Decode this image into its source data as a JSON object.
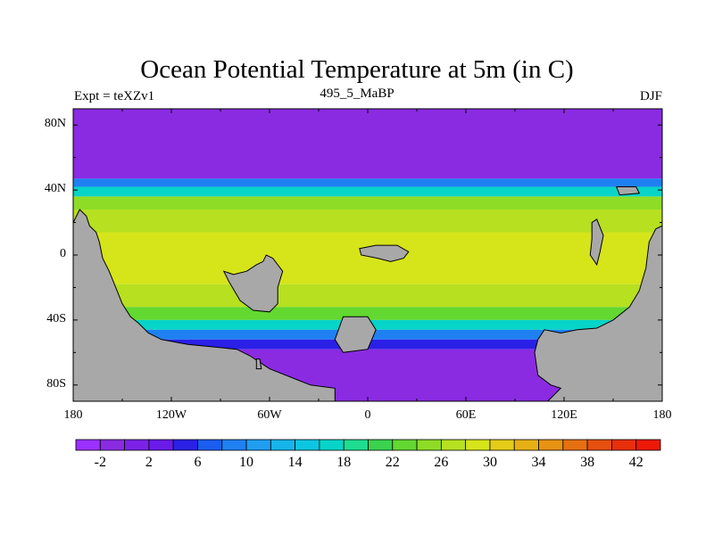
{
  "chart_data": {
    "type": "heatmap",
    "title": "Ocean Potential Temperature at 5m (in C)",
    "subtitle_left": "Expt = teXZv1",
    "subtitle_center": "495_5_MaBP",
    "subtitle_right": "DJF",
    "x_ticks": [
      "180",
      "120W",
      "60W",
      "0",
      "60E",
      "120E",
      "180"
    ],
    "x_tick_values": [
      -180,
      -120,
      -60,
      0,
      60,
      120,
      180
    ],
    "y_ticks": [
      "80N",
      "40N",
      "0",
      "40S",
      "80S"
    ],
    "y_tick_values": [
      80,
      40,
      0,
      -40,
      -80
    ],
    "xlim": [
      -180,
      180
    ],
    "ylim": [
      -90,
      90
    ],
    "colorbar_labels": [
      "-2",
      "2",
      "6",
      "10",
      "14",
      "18",
      "22",
      "26",
      "30",
      "34",
      "38",
      "42"
    ],
    "colorbar_colors": [
      "#9b30ff",
      "#8a2be2",
      "#7b21e6",
      "#6a1be8",
      "#2a20e6",
      "#1a5ef0",
      "#1f80f2",
      "#1f9ef0",
      "#16b4ea",
      "#0bc6e2",
      "#06d4c8",
      "#1edc90",
      "#3ad24e",
      "#62d830",
      "#8edc26",
      "#b6e020",
      "#d6e41a",
      "#e4cc18",
      "#e6b014",
      "#e69212",
      "#e67010",
      "#e6500e",
      "#e8300c",
      "#ec1808"
    ],
    "land_color": "#a8a8a8",
    "bands": [
      {
        "lat_top": 90,
        "lat_bottom": 47,
        "temp": -2
      },
      {
        "lat_top": 47,
        "lat_bottom": 42,
        "temp": 8
      },
      {
        "lat_top": 42,
        "lat_bottom": 36,
        "temp": 17
      },
      {
        "lat_top": 36,
        "lat_bottom": 28,
        "temp": 24
      },
      {
        "lat_top": 28,
        "lat_bottom": 14,
        "temp": 27
      },
      {
        "lat_top": 14,
        "lat_bottom": -18,
        "temp": 29
      },
      {
        "lat_top": -18,
        "lat_bottom": -32,
        "temp": 27
      },
      {
        "lat_top": -32,
        "lat_bottom": -40,
        "temp": 22
      },
      {
        "lat_top": -40,
        "lat_bottom": -46,
        "temp": 16
      },
      {
        "lat_top": -46,
        "lat_bottom": -52,
        "temp": 9
      },
      {
        "lat_top": -52,
        "lat_bottom": -58,
        "temp": 4
      },
      {
        "lat_top": -58,
        "lat_bottom": -90,
        "temp": -2
      }
    ],
    "land_masses": [
      {
        "name": "eastern-america",
        "points": [
          [
            -180,
            -90
          ],
          [
            -180,
            20
          ],
          [
            -176,
            28
          ],
          [
            -172,
            24
          ],
          [
            -170,
            18
          ],
          [
            -166,
            14
          ],
          [
            -164,
            8
          ],
          [
            -162,
            -2
          ],
          [
            -158,
            -10
          ],
          [
            -154,
            -20
          ],
          [
            -150,
            -30
          ],
          [
            -145,
            -38
          ],
          [
            -140,
            -42
          ],
          [
            -134,
            -48
          ],
          [
            -126,
            -52
          ],
          [
            -110,
            -55
          ],
          [
            -80,
            -58
          ],
          [
            -72,
            -62
          ],
          [
            -60,
            -70
          ],
          [
            -45,
            -76
          ],
          [
            -35,
            -80
          ],
          [
            -20,
            -82
          ],
          [
            -20,
            -90
          ]
        ]
      },
      {
        "name": "africa-like-island",
        "points": [
          [
            -88,
            -10
          ],
          [
            -85,
            -16
          ],
          [
            -78,
            -28
          ],
          [
            -70,
            -34
          ],
          [
            -60,
            -35
          ],
          [
            -55,
            -30
          ],
          [
            -55,
            -20
          ],
          [
            -52,
            -10
          ],
          [
            -58,
            -2
          ],
          [
            -62,
            0
          ],
          [
            -64,
            -4
          ],
          [
            -68,
            -6
          ],
          [
            -74,
            -10
          ],
          [
            -82,
            -12
          ]
        ]
      },
      {
        "name": "equatorial-island",
        "points": [
          [
            -5,
            4
          ],
          [
            5,
            6
          ],
          [
            18,
            6
          ],
          [
            25,
            2
          ],
          [
            22,
            -2
          ],
          [
            14,
            -4
          ],
          [
            6,
            -2
          ],
          [
            -4,
            0
          ]
        ]
      },
      {
        "name": "south-central-island",
        "points": [
          [
            -15,
            -38
          ],
          [
            0,
            -38
          ],
          [
            5,
            -46
          ],
          [
            0,
            -58
          ],
          [
            -15,
            -60
          ],
          [
            -20,
            -52
          ]
        ]
      },
      {
        "name": "east-coast",
        "points": [
          [
            180,
            -90
          ],
          [
            180,
            18
          ],
          [
            176,
            16
          ],
          [
            172,
            8
          ],
          [
            170,
            -8
          ],
          [
            166,
            -22
          ],
          [
            160,
            -32
          ],
          [
            150,
            -40
          ],
          [
            140,
            -45
          ],
          [
            128,
            -46
          ],
          [
            118,
            -48
          ],
          [
            108,
            -46
          ],
          [
            104,
            -52
          ],
          [
            102,
            -60
          ],
          [
            104,
            -74
          ],
          [
            112,
            -80
          ],
          [
            118,
            -82
          ],
          [
            110,
            -90
          ]
        ]
      },
      {
        "name": "eastern-islands",
        "points": [
          [
            137,
            20
          ],
          [
            140,
            22
          ],
          [
            144,
            12
          ],
          [
            142,
            2
          ],
          [
            140,
            -6
          ],
          [
            136,
            0
          ],
          [
            137,
            10
          ]
        ]
      },
      {
        "name": "northeast-spot",
        "points": [
          [
            152,
            42
          ],
          [
            164,
            42
          ],
          [
            166,
            38
          ],
          [
            154,
            37
          ]
        ]
      },
      {
        "name": "southwest-spot",
        "points": [
          [
            -68,
            -64
          ],
          [
            -66,
            -64
          ],
          [
            -65,
            -70
          ],
          [
            -68,
            -70
          ]
        ]
      }
    ]
  }
}
